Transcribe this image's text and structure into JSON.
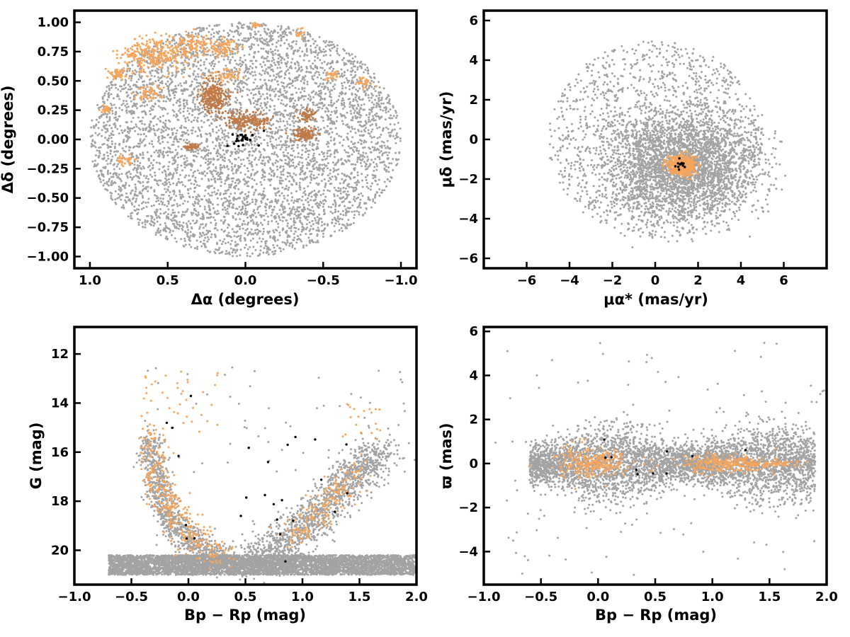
{
  "chart_data": [
    {
      "id": "sky",
      "type": "scatter",
      "xlabel": "Δα (degrees)",
      "ylabel": "Δδ (degrees)",
      "xlim": [
        1.1,
        -1.1
      ],
      "ylim": [
        -1.1,
        1.1
      ],
      "xticks": [
        1.0,
        0.5,
        0.0,
        -0.5,
        -1.0
      ],
      "xtick_labels": [
        "1.0",
        "0.5",
        "0.0",
        "−0.5",
        "−1.0"
      ],
      "yticks": [
        1.0,
        0.75,
        0.5,
        0.25,
        0.0,
        -0.25,
        -0.5,
        -0.75,
        -1.0
      ],
      "ytick_labels": [
        "1.00",
        "0.75",
        "0.50",
        "0.25",
        "0.00",
        "−0.25",
        "−0.50",
        "−0.75",
        "−1.00"
      ],
      "series": [
        {
          "color": "#a3a3a3",
          "n": 5200,
          "distribution": {
            "kind": "disk",
            "cx": 0.0,
            "cy": 0.0,
            "r": 1.0
          }
        },
        {
          "color": "#f5a55c",
          "n": 850,
          "distribution": {
            "kind": "clumps",
            "clumps": [
              [
                0.6,
                0.72,
                0.18,
                0.12,
                0.35
              ],
              [
                0.35,
                0.8,
                0.12,
                0.1,
                0.15
              ],
              [
                0.15,
                0.78,
                0.1,
                0.08,
                0.1
              ],
              [
                0.82,
                0.56,
                0.06,
                0.05,
                0.06
              ],
              [
                0.62,
                0.4,
                0.08,
                0.06,
                0.08
              ],
              [
                0.12,
                0.55,
                0.1,
                0.05,
                0.06
              ],
              [
                0.77,
                -0.17,
                0.05,
                0.05,
                0.05
              ],
              [
                0.9,
                0.25,
                0.03,
                0.03,
                0.03
              ],
              [
                -0.75,
                0.5,
                0.05,
                0.05,
                0.04
              ],
              [
                -0.55,
                0.55,
                0.04,
                0.04,
                0.03
              ],
              [
                -0.35,
                0.9,
                0.04,
                0.04,
                0.03
              ],
              [
                -0.05,
                0.98,
                0.04,
                0.02,
                0.02
              ],
              [
                0.22,
                0.4,
                0.08,
                0.05,
                0.03
              ]
            ]
          }
        },
        {
          "color": "#bf7a48",
          "n": 650,
          "distribution": {
            "kind": "clumps",
            "clumps": [
              [
                0.2,
                0.37,
                0.08,
                0.12,
                0.35
              ],
              [
                0.0,
                0.16,
                0.12,
                0.07,
                0.3
              ],
              [
                -0.38,
                0.05,
                0.07,
                0.05,
                0.15
              ],
              [
                -0.4,
                0.2,
                0.06,
                0.05,
                0.1
              ],
              [
                0.35,
                -0.06,
                0.04,
                0.02,
                0.1
              ]
            ]
          }
        },
        {
          "color": "#000000",
          "n": 30,
          "distribution": {
            "kind": "gauss",
            "cx": 0.03,
            "cy": 0.0,
            "sx": 0.05,
            "sy": 0.03
          }
        }
      ]
    },
    {
      "id": "proper-motion",
      "type": "scatter",
      "xlabel": "μα* (mas/yr)",
      "ylabel": "μδ (mas/yr)",
      "xlim": [
        -8,
        8
      ],
      "ylim": [
        -6.5,
        6.5
      ],
      "xticks": [
        -6,
        -4,
        -2,
        0,
        2,
        4,
        6
      ],
      "xtick_labels": [
        "−6",
        "−4",
        "−2",
        "0",
        "2",
        "4",
        "6"
      ],
      "yticks": [
        6,
        4,
        2,
        0,
        -2,
        -4,
        -6
      ],
      "ytick_labels": [
        "6",
        "4",
        "2",
        "0",
        "−2",
        "−4",
        "−6"
      ],
      "series": [
        {
          "color": "#a3a3a3",
          "n": 3000,
          "distribution": {
            "kind": "gauss",
            "cx": 1.2,
            "cy": -1.3,
            "sx": 1.8,
            "sy": 1.3,
            "rmax": 5
          }
        },
        {
          "color": "#a3a3a3",
          "n": 1400,
          "distribution": {
            "kind": "disk",
            "cx": 0.0,
            "cy": 0.0,
            "r": 5.0
          }
        },
        {
          "color": "#f5a55c",
          "n": 500,
          "distribution": {
            "kind": "gauss",
            "cx": 1.2,
            "cy": -1.3,
            "sx": 0.35,
            "sy": 0.25,
            "rmax": 0.9
          }
        },
        {
          "color": "#000000",
          "n": 12,
          "distribution": {
            "kind": "gauss",
            "cx": 1.2,
            "cy": -1.3,
            "sx": 0.2,
            "sy": 0.15
          }
        }
      ]
    },
    {
      "id": "cmd-g",
      "type": "scatter",
      "xlabel": "Bp − Rp (mag)",
      "ylabel": "G (mag)",
      "xlim": [
        -1.0,
        2.0
      ],
      "ylim": [
        21.4,
        10.9
      ],
      "xticks": [
        -1.0,
        -0.5,
        0.0,
        0.5,
        1.0,
        1.5,
        2.0
      ],
      "xtick_labels": [
        "−1.0",
        "−0.5",
        "0.0",
        "0.5",
        "1.0",
        "1.5",
        "2.0"
      ],
      "yticks": [
        20,
        18,
        16,
        14,
        12
      ],
      "ytick_labels": [
        "20",
        "18",
        "16",
        "14",
        "12"
      ],
      "series": [
        {
          "color": "#a3a3a3",
          "n": 5000,
          "distribution": {
            "kind": "band",
            "xmin": -0.7,
            "xmax": 2.0,
            "ymin": 20.2,
            "ymax": 21.0
          }
        },
        {
          "color": "#a3a3a3",
          "n": 900,
          "distribution": {
            "kind": "curve",
            "points": [
              [
                -0.35,
                15.5
              ],
              [
                -0.25,
                17.5
              ],
              [
                -0.15,
                18.8
              ],
              [
                0.05,
                19.8
              ],
              [
                0.3,
                20.4
              ]
            ],
            "spread": [
              0.06,
              0.35
            ]
          }
        },
        {
          "color": "#a3a3a3",
          "n": 1300,
          "distribution": {
            "kind": "curve",
            "points": [
              [
                0.5,
                20.5
              ],
              [
                0.8,
                19.8
              ],
              [
                1.05,
                18.9
              ],
              [
                1.3,
                17.7
              ],
              [
                1.5,
                16.6
              ],
              [
                1.7,
                16.0
              ]
            ],
            "spread": [
              0.1,
              0.4
            ]
          }
        },
        {
          "color": "#a3a3a3",
          "n": 60,
          "distribution": {
            "kind": "box",
            "xmin": -0.4,
            "xmax": 1.9,
            "ymin": 12.4,
            "ymax": 17
          }
        },
        {
          "color": "#f5a55c",
          "n": 320,
          "distribution": {
            "kind": "curve",
            "points": [
              [
                -0.35,
                15.3
              ],
              [
                -0.3,
                16.8
              ],
              [
                -0.2,
                17.8
              ],
              [
                -0.1,
                18.8
              ],
              [
                0.05,
                19.6
              ],
              [
                0.3,
                20.3
              ]
            ],
            "spread": [
              0.07,
              0.35
            ]
          }
        },
        {
          "color": "#f5a55c",
          "n": 180,
          "distribution": {
            "kind": "curve",
            "points": [
              [
                0.9,
                19.4
              ],
              [
                1.05,
                18.9
              ],
              [
                1.2,
                18.2
              ],
              [
                1.35,
                17.4
              ],
              [
                1.5,
                16.5
              ]
            ],
            "spread": [
              0.07,
              0.3
            ]
          }
        },
        {
          "color": "#f5a55c",
          "n": 40,
          "distribution": {
            "kind": "box",
            "xmin": -0.4,
            "xmax": 0.3,
            "ymin": 12.6,
            "ymax": 15.5
          }
        },
        {
          "color": "#f5a55c",
          "n": 20,
          "distribution": {
            "kind": "box",
            "xmin": 1.3,
            "xmax": 1.7,
            "ymin": 14,
            "ymax": 15.5
          }
        },
        {
          "color": "#000000",
          "n": 25,
          "distribution": {
            "kind": "box",
            "xmin": -0.3,
            "xmax": 1.4,
            "ymin": 13.5,
            "ymax": 20.6
          }
        }
      ]
    },
    {
      "id": "cmd-parallax",
      "type": "scatter",
      "xlabel": "Bp − Rp (mag)",
      "ylabel": "ϖ (mas)",
      "xlim": [
        -1.0,
        2.0
      ],
      "ylim": [
        -5.5,
        6.2
      ],
      "xticks": [
        -1.0,
        -0.5,
        0.0,
        0.5,
        1.0,
        1.5,
        2.0
      ],
      "xtick_labels": [
        "−1.0",
        "−0.5",
        "0.0",
        "0.5",
        "1.0",
        "1.5",
        "2.0"
      ],
      "yticks": [
        6,
        4,
        2,
        0,
        -2,
        -4
      ],
      "ytick_labels": [
        "6",
        "4",
        "2",
        "0",
        "−2",
        "−4"
      ],
      "series": [
        {
          "color": "#a3a3a3",
          "n": 4500,
          "distribution": {
            "kind": "gauss-band",
            "xmin": -0.6,
            "xmax": 1.9,
            "cy": 0.0,
            "sy": 0.75
          }
        },
        {
          "color": "#a3a3a3",
          "n": 120,
          "distribution": {
            "kind": "box",
            "xmin": -0.9,
            "xmax": 2.0,
            "ymin": -5.2,
            "ymax": 5.5
          }
        },
        {
          "color": "#f5a55c",
          "n": 280,
          "distribution": {
            "kind": "gauss",
            "cx": -0.05,
            "cy": 0.0,
            "sx": 0.15,
            "sy": 0.3
          }
        },
        {
          "color": "#f5a55c",
          "n": 260,
          "distribution": {
            "kind": "gauss",
            "cx": 1.1,
            "cy": 0.0,
            "sx": 0.2,
            "sy": 0.22
          }
        },
        {
          "color": "#f5a55c",
          "n": 50,
          "distribution": {
            "kind": "box",
            "xmin": 1.3,
            "xmax": 1.75,
            "ymin": -0.1,
            "ymax": 0.1
          }
        },
        {
          "color": "#000000",
          "n": 10,
          "distribution": {
            "kind": "box",
            "xmin": 0.0,
            "xmax": 1.3,
            "ymin": -0.5,
            "ymax": 1.2
          }
        }
      ]
    }
  ]
}
